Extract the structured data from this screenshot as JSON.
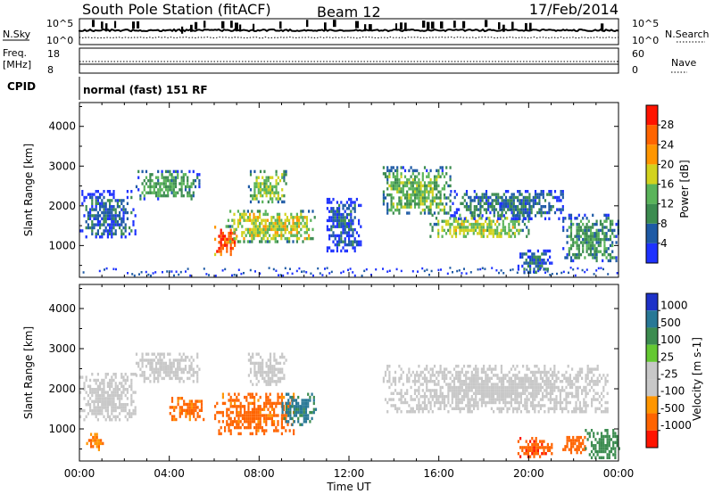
{
  "header": {
    "station": "South Pole Station (fitACF)",
    "beam": "Beam 12",
    "date": "17/Feb/2014"
  },
  "top_strip": {
    "left_label": "N.Sky",
    "left_ticks": [
      "10^5",
      "10^0"
    ],
    "right_ticks": [
      "10^5",
      "10^0"
    ],
    "right_label": "N.Search"
  },
  "freq_strip": {
    "label_line1": "Freq.",
    "label_line2": "[MHz]",
    "left_ticks": [
      "18",
      "8"
    ],
    "right_ticks": [
      "60",
      "0"
    ],
    "right_label": "Nave"
  },
  "cpid": {
    "label": "CPID",
    "text": "normal (fast) 151 RF"
  },
  "colors": {
    "power_scale": [
      "#1e32ff",
      "#1e5aa5",
      "#3c8c50",
      "#5ab45a",
      "#d2d21e",
      "#ff9600",
      "#ff6400",
      "#ff1400"
    ],
    "velocity_scale": [
      "#1e32c8",
      "#287896",
      "#3c8c50",
      "#64c832",
      "#c8c8c8",
      "#c8c8c8",
      "#ff9600",
      "#ff6400",
      "#ff1400"
    ]
  },
  "chart_data": [
    {
      "type": "heatmap",
      "panel": "power",
      "ylabel": "Slant Range [km]",
      "yticks": [
        "1000",
        "2000",
        "3000",
        "4000"
      ],
      "ylim": [
        200,
        4600
      ],
      "xlim_hours": [
        0,
        24
      ],
      "colorbar": {
        "title": "Power [dB]",
        "ticks": [
          "4",
          "8",
          "12",
          "16",
          "20",
          "24",
          "28"
        ],
        "range": [
          0,
          30
        ]
      },
      "echo_regions": [
        {
          "t_start": 0.0,
          "t_end": 2.5,
          "range_low": 1200,
          "range_high": 2400,
          "power": 6
        },
        {
          "t_start": 2.5,
          "t_end": 5.3,
          "range_low": 2200,
          "range_high": 2900,
          "power": 11
        },
        {
          "t_start": 6.0,
          "t_end": 7.0,
          "range_low": 800,
          "range_high": 1500,
          "power": 26
        },
        {
          "t_start": 6.5,
          "t_end": 10.5,
          "range_low": 1100,
          "range_high": 1900,
          "power": 16
        },
        {
          "t_start": 7.5,
          "t_end": 9.2,
          "range_low": 2100,
          "range_high": 2900,
          "power": 14
        },
        {
          "t_start": 11.0,
          "t_end": 12.5,
          "range_low": 900,
          "range_high": 2200,
          "power": 5
        },
        {
          "t_start": 13.5,
          "t_end": 16.5,
          "range_low": 1800,
          "range_high": 3000,
          "power": 13
        },
        {
          "t_start": 15.5,
          "t_end": 20.0,
          "range_low": 1200,
          "range_high": 1800,
          "power": 15
        },
        {
          "t_start": 16.5,
          "t_end": 21.5,
          "range_low": 1700,
          "range_high": 2400,
          "power": 7
        },
        {
          "t_start": 19.5,
          "t_end": 21.0,
          "range_low": 300,
          "range_high": 900,
          "power": 6
        },
        {
          "t_start": 21.5,
          "t_end": 24.0,
          "range_low": 600,
          "range_high": 1800,
          "power": 10
        }
      ]
    },
    {
      "type": "heatmap",
      "panel": "velocity",
      "ylabel": "Slant Range [km]",
      "yticks": [
        "1000",
        "2000",
        "3000",
        "4000"
      ],
      "ylim": [
        200,
        4600
      ],
      "xlabel": "Time UT",
      "xticks": [
        "00:00",
        "04:00",
        "08:00",
        "12:00",
        "16:00",
        "20:00",
        "00:00"
      ],
      "xlim_hours": [
        0,
        24
      ],
      "colorbar": {
        "title": "Velocity [m s-1]",
        "ticks": [
          "1000",
          "500",
          "100",
          "25",
          "-25",
          "-100",
          "-500",
          "-1000"
        ]
      },
      "echo_regions": [
        {
          "t_start": 0.0,
          "t_end": 2.5,
          "range_low": 1200,
          "range_high": 2400,
          "velocity": 0
        },
        {
          "t_start": 0.3,
          "t_end": 1.0,
          "range_low": 500,
          "range_high": 900,
          "velocity": -300
        },
        {
          "t_start": 2.5,
          "t_end": 5.3,
          "range_low": 2200,
          "range_high": 2900,
          "velocity": 0
        },
        {
          "t_start": 4.0,
          "t_end": 5.5,
          "range_low": 1200,
          "range_high": 1800,
          "velocity": -400
        },
        {
          "t_start": 6.0,
          "t_end": 9.5,
          "range_low": 900,
          "range_high": 1900,
          "velocity": -450
        },
        {
          "t_start": 9.0,
          "t_end": 10.5,
          "range_low": 1100,
          "range_high": 1900,
          "velocity": 400
        },
        {
          "t_start": 7.5,
          "t_end": 9.2,
          "range_low": 2100,
          "range_high": 2900,
          "velocity": 0
        },
        {
          "t_start": 13.5,
          "t_end": 23.5,
          "range_low": 1400,
          "range_high": 2600,
          "velocity": 0
        },
        {
          "t_start": 19.5,
          "t_end": 21.0,
          "range_low": 300,
          "range_high": 800,
          "velocity": -600
        },
        {
          "t_start": 21.5,
          "t_end": 22.5,
          "range_low": 400,
          "range_high": 900,
          "velocity": -500
        },
        {
          "t_start": 22.5,
          "t_end": 24.0,
          "range_low": 300,
          "range_high": 1000,
          "velocity": 200
        }
      ]
    }
  ]
}
